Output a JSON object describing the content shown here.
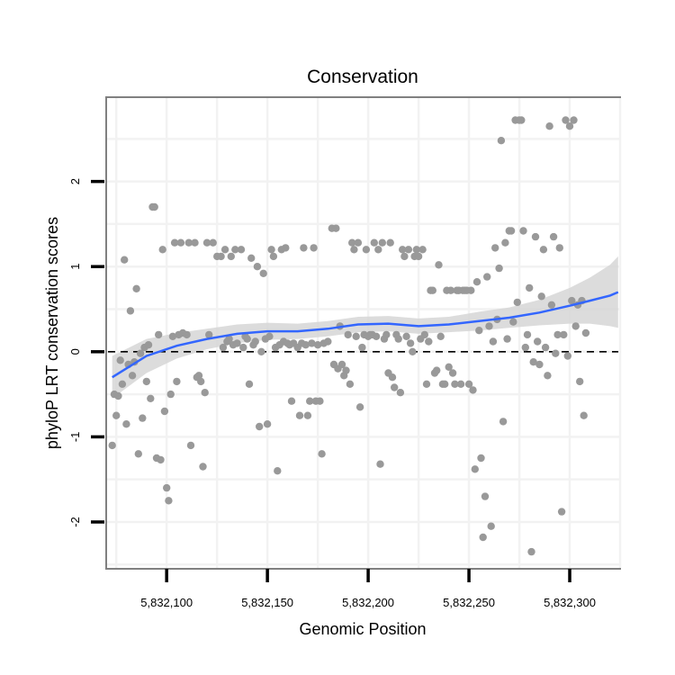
{
  "chart_data": {
    "type": "scatter",
    "title": "Conservation",
    "xlabel": "Genomic Position",
    "ylabel": "phyloP LRT conservation scores",
    "xlim": [
      5832070,
      5832325
    ],
    "ylim": [
      -2.55,
      2.99
    ],
    "x_ticks": [
      5832100,
      5832150,
      5832200,
      5832250,
      5832300
    ],
    "x_tick_labels": [
      "5,832,100",
      "5,832,150",
      "5,832,200",
      "5,832,250",
      "5,832,300"
    ],
    "y_ticks": [
      -2,
      -1,
      0,
      1,
      2
    ],
    "y_tick_labels": [
      "-2",
      "-1",
      "0",
      "1",
      "2"
    ],
    "reference_line": {
      "y": 0,
      "style": "dashed"
    },
    "grid": true,
    "colors": {
      "points": "#999999",
      "smooth": "#3366ff",
      "band": "#d3d3d3",
      "panel_border": "#808080"
    },
    "smooth": {
      "x": [
        5832073,
        5832090,
        5832105,
        5832120,
        5832135,
        5832150,
        5832165,
        5832180,
        5832195,
        5832210,
        5832225,
        5832240,
        5832255,
        5832270,
        5832285,
        5832300,
        5832310,
        5832320,
        5832324
      ],
      "y": [
        -0.3,
        -0.05,
        0.07,
        0.15,
        0.21,
        0.24,
        0.24,
        0.27,
        0.32,
        0.33,
        0.3,
        0.32,
        0.36,
        0.4,
        0.46,
        0.54,
        0.6,
        0.66,
        0.7
      ],
      "lower": [
        -0.55,
        -0.25,
        -0.08,
        0.03,
        0.1,
        0.14,
        0.15,
        0.18,
        0.23,
        0.24,
        0.21,
        0.23,
        0.25,
        0.28,
        0.31,
        0.33,
        0.33,
        0.3,
        0.28
      ],
      "upper": [
        -0.05,
        0.15,
        0.22,
        0.27,
        0.32,
        0.34,
        0.33,
        0.36,
        0.41,
        0.42,
        0.39,
        0.41,
        0.47,
        0.52,
        0.61,
        0.75,
        0.87,
        1.02,
        1.12
      ]
    },
    "points": [
      {
        "x": 5832073,
        "y": -1.1
      },
      {
        "x": 5832074,
        "y": -0.5
      },
      {
        "x": 5832075,
        "y": -0.75
      },
      {
        "x": 5832076,
        "y": -0.52
      },
      {
        "x": 5832077,
        "y": -0.1
      },
      {
        "x": 5832078,
        "y": -0.38
      },
      {
        "x": 5832079,
        "y": 1.08
      },
      {
        "x": 5832080,
        "y": -0.85
      },
      {
        "x": 5832081,
        "y": -0.15
      },
      {
        "x": 5832082,
        "y": 0.48
      },
      {
        "x": 5832083,
        "y": -0.28
      },
      {
        "x": 5832084,
        "y": -0.12
      },
      {
        "x": 5832085,
        "y": 0.74
      },
      {
        "x": 5832086,
        "y": -1.2
      },
      {
        "x": 5832087,
        "y": -0.02
      },
      {
        "x": 5832088,
        "y": -0.78
      },
      {
        "x": 5832089,
        "y": 0.05
      },
      {
        "x": 5832090,
        "y": -0.35
      },
      {
        "x": 5832091,
        "y": 0.08
      },
      {
        "x": 5832092,
        "y": -0.55
      },
      {
        "x": 5832093,
        "y": 1.7
      },
      {
        "x": 5832094,
        "y": 1.7
      },
      {
        "x": 5832095,
        "y": -1.25
      },
      {
        "x": 5832096,
        "y": 0.2
      },
      {
        "x": 5832097,
        "y": -1.27
      },
      {
        "x": 5832098,
        "y": 1.2
      },
      {
        "x": 5832099,
        "y": -0.7
      },
      {
        "x": 5832100,
        "y": -1.6
      },
      {
        "x": 5832101,
        "y": -1.75
      },
      {
        "x": 5832102,
        "y": -0.5
      },
      {
        "x": 5832103,
        "y": 0.18
      },
      {
        "x": 5832104,
        "y": 1.28
      },
      {
        "x": 5832105,
        "y": -0.35
      },
      {
        "x": 5832106,
        "y": 0.2
      },
      {
        "x": 5832107,
        "y": 1.28
      },
      {
        "x": 5832108,
        "y": 0.22
      },
      {
        "x": 5832110,
        "y": 0.2
      },
      {
        "x": 5832111,
        "y": 1.28
      },
      {
        "x": 5832112,
        "y": -1.1
      },
      {
        "x": 5832114,
        "y": 1.28
      },
      {
        "x": 5832115,
        "y": -0.3
      },
      {
        "x": 5832116,
        "y": -0.28
      },
      {
        "x": 5832117,
        "y": -0.35
      },
      {
        "x": 5832118,
        "y": -1.35
      },
      {
        "x": 5832119,
        "y": -0.48
      },
      {
        "x": 5832120,
        "y": 1.28
      },
      {
        "x": 5832121,
        "y": 0.2
      },
      {
        "x": 5832123,
        "y": 1.28
      },
      {
        "x": 5832125,
        "y": 1.12
      },
      {
        "x": 5832127,
        "y": 1.12
      },
      {
        "x": 5832128,
        "y": 0.05
      },
      {
        "x": 5832129,
        "y": 1.2
      },
      {
        "x": 5832130,
        "y": 0.12
      },
      {
        "x": 5832131,
        "y": 0.15
      },
      {
        "x": 5832132,
        "y": 1.12
      },
      {
        "x": 5832133,
        "y": 0.08
      },
      {
        "x": 5832134,
        "y": 1.2
      },
      {
        "x": 5832135,
        "y": 0.1
      },
      {
        "x": 5832137,
        "y": 1.2
      },
      {
        "x": 5832138,
        "y": 0.05
      },
      {
        "x": 5832139,
        "y": 0.18
      },
      {
        "x": 5832140,
        "y": 0.15
      },
      {
        "x": 5832141,
        "y": -0.38
      },
      {
        "x": 5832142,
        "y": 1.1
      },
      {
        "x": 5832143,
        "y": 0.08
      },
      {
        "x": 5832144,
        "y": 0.12
      },
      {
        "x": 5832145,
        "y": 1.0
      },
      {
        "x": 5832146,
        "y": -0.88
      },
      {
        "x": 5832147,
        "y": 0.0
      },
      {
        "x": 5832148,
        "y": 0.92
      },
      {
        "x": 5832149,
        "y": 0.15
      },
      {
        "x": 5832150,
        "y": -0.85
      },
      {
        "x": 5832151,
        "y": 0.18
      },
      {
        "x": 5832152,
        "y": 1.2
      },
      {
        "x": 5832153,
        "y": 1.12
      },
      {
        "x": 5832154,
        "y": 0.05
      },
      {
        "x": 5832155,
        "y": -1.4
      },
      {
        "x": 5832156,
        "y": 0.08
      },
      {
        "x": 5832157,
        "y": 1.2
      },
      {
        "x": 5832158,
        "y": 0.12
      },
      {
        "x": 5832159,
        "y": 1.22
      },
      {
        "x": 5832160,
        "y": 0.1
      },
      {
        "x": 5832161,
        "y": 0.08
      },
      {
        "x": 5832162,
        "y": -0.58
      },
      {
        "x": 5832163,
        "y": 0.1
      },
      {
        "x": 5832165,
        "y": 0.05
      },
      {
        "x": 5832166,
        "y": -0.75
      },
      {
        "x": 5832167,
        "y": 0.1
      },
      {
        "x": 5832168,
        "y": 1.22
      },
      {
        "x": 5832169,
        "y": 0.08
      },
      {
        "x": 5832170,
        "y": -0.75
      },
      {
        "x": 5832171,
        "y": -0.58
      },
      {
        "x": 5832172,
        "y": 0.1
      },
      {
        "x": 5832173,
        "y": 1.22
      },
      {
        "x": 5832174,
        "y": -0.58
      },
      {
        "x": 5832175,
        "y": 0.08
      },
      {
        "x": 5832176,
        "y": -0.58
      },
      {
        "x": 5832177,
        "y": -1.2
      },
      {
        "x": 5832178,
        "y": 0.1
      },
      {
        "x": 5832180,
        "y": 0.12
      },
      {
        "x": 5832182,
        "y": 1.45
      },
      {
        "x": 5832183,
        "y": -0.15
      },
      {
        "x": 5832184,
        "y": 1.45
      },
      {
        "x": 5832185,
        "y": -0.2
      },
      {
        "x": 5832186,
        "y": 0.3
      },
      {
        "x": 5832187,
        "y": -0.15
      },
      {
        "x": 5832188,
        "y": -0.28
      },
      {
        "x": 5832189,
        "y": -0.22
      },
      {
        "x": 5832190,
        "y": 0.2
      },
      {
        "x": 5832191,
        "y": -0.38
      },
      {
        "x": 5832192,
        "y": 1.28
      },
      {
        "x": 5832193,
        "y": 1.2
      },
      {
        "x": 5832194,
        "y": 0.18
      },
      {
        "x": 5832195,
        "y": 1.28
      },
      {
        "x": 5832196,
        "y": -0.65
      },
      {
        "x": 5832197,
        "y": 0.05
      },
      {
        "x": 5832198,
        "y": 0.2
      },
      {
        "x": 5832199,
        "y": 1.2
      },
      {
        "x": 5832200,
        "y": 0.18
      },
      {
        "x": 5832201,
        "y": 0.2
      },
      {
        "x": 5832202,
        "y": 0.2
      },
      {
        "x": 5832203,
        "y": 1.28
      },
      {
        "x": 5832204,
        "y": 0.18
      },
      {
        "x": 5832205,
        "y": 1.2
      },
      {
        "x": 5832206,
        "y": -1.32
      },
      {
        "x": 5832207,
        "y": 1.28
      },
      {
        "x": 5832208,
        "y": 0.15
      },
      {
        "x": 5832209,
        "y": 0.2
      },
      {
        "x": 5832210,
        "y": -0.25
      },
      {
        "x": 5832211,
        "y": 1.28
      },
      {
        "x": 5832212,
        "y": -0.3
      },
      {
        "x": 5832213,
        "y": -0.42
      },
      {
        "x": 5832214,
        "y": 0.2
      },
      {
        "x": 5832215,
        "y": 0.15
      },
      {
        "x": 5832216,
        "y": -0.48
      },
      {
        "x": 5832217,
        "y": 1.2
      },
      {
        "x": 5832218,
        "y": 1.12
      },
      {
        "x": 5832219,
        "y": 0.18
      },
      {
        "x": 5832220,
        "y": 1.2
      },
      {
        "x": 5832221,
        "y": 0.1
      },
      {
        "x": 5832222,
        "y": 0.0
      },
      {
        "x": 5832223,
        "y": 1.12
      },
      {
        "x": 5832224,
        "y": 1.2
      },
      {
        "x": 5832225,
        "y": 1.12
      },
      {
        "x": 5832226,
        "y": 0.15
      },
      {
        "x": 5832227,
        "y": 1.2
      },
      {
        "x": 5832228,
        "y": 0.2
      },
      {
        "x": 5832229,
        "y": -0.38
      },
      {
        "x": 5832230,
        "y": 0.12
      },
      {
        "x": 5832231,
        "y": 0.72
      },
      {
        "x": 5832232,
        "y": 0.72
      },
      {
        "x": 5832233,
        "y": -0.25
      },
      {
        "x": 5832234,
        "y": -0.22
      },
      {
        "x": 5832235,
        "y": 1.02
      },
      {
        "x": 5832236,
        "y": 0.18
      },
      {
        "x": 5832237,
        "y": -0.38
      },
      {
        "x": 5832238,
        "y": -0.38
      },
      {
        "x": 5832239,
        "y": 0.72
      },
      {
        "x": 5832240,
        "y": -0.18
      },
      {
        "x": 5832241,
        "y": 0.72
      },
      {
        "x": 5832242,
        "y": -0.25
      },
      {
        "x": 5832243,
        "y": -0.38
      },
      {
        "x": 5832244,
        "y": 0.72
      },
      {
        "x": 5832245,
        "y": 0.72
      },
      {
        "x": 5832246,
        "y": -0.38
      },
      {
        "x": 5832247,
        "y": 0.72
      },
      {
        "x": 5832248,
        "y": 0.72
      },
      {
        "x": 5832249,
        "y": 0.72
      },
      {
        "x": 5832250,
        "y": -0.38
      },
      {
        "x": 5832251,
        "y": 0.72
      },
      {
        "x": 5832252,
        "y": -0.45
      },
      {
        "x": 5832253,
        "y": -1.38
      },
      {
        "x": 5832254,
        "y": 0.82
      },
      {
        "x": 5832255,
        "y": 0.25
      },
      {
        "x": 5832256,
        "y": -1.25
      },
      {
        "x": 5832257,
        "y": -2.18
      },
      {
        "x": 5832258,
        "y": -1.7
      },
      {
        "x": 5832259,
        "y": 0.88
      },
      {
        "x": 5832260,
        "y": 0.3
      },
      {
        "x": 5832261,
        "y": -2.05
      },
      {
        "x": 5832262,
        "y": 0.12
      },
      {
        "x": 5832263,
        "y": 1.22
      },
      {
        "x": 5832264,
        "y": 0.38
      },
      {
        "x": 5832265,
        "y": 0.98
      },
      {
        "x": 5832266,
        "y": 2.48
      },
      {
        "x": 5832267,
        "y": -0.82
      },
      {
        "x": 5832268,
        "y": 1.28
      },
      {
        "x": 5832269,
        "y": 0.15
      },
      {
        "x": 5832270,
        "y": 1.42
      },
      {
        "x": 5832271,
        "y": 1.42
      },
      {
        "x": 5832272,
        "y": 0.35
      },
      {
        "x": 5832273,
        "y": 2.72
      },
      {
        "x": 5832274,
        "y": 0.58
      },
      {
        "x": 5832275,
        "y": 2.72
      },
      {
        "x": 5832276,
        "y": 2.72
      },
      {
        "x": 5832277,
        "y": 1.42
      },
      {
        "x": 5832278,
        "y": 0.05
      },
      {
        "x": 5832279,
        "y": 0.2
      },
      {
        "x": 5832280,
        "y": 0.75
      },
      {
        "x": 5832281,
        "y": -2.35
      },
      {
        "x": 5832282,
        "y": -0.12
      },
      {
        "x": 5832283,
        "y": 1.35
      },
      {
        "x": 5832284,
        "y": 0.12
      },
      {
        "x": 5832285,
        "y": -0.15
      },
      {
        "x": 5832286,
        "y": 0.65
      },
      {
        "x": 5832287,
        "y": 1.2
      },
      {
        "x": 5832288,
        "y": 0.05
      },
      {
        "x": 5832289,
        "y": -0.28
      },
      {
        "x": 5832290,
        "y": 2.65
      },
      {
        "x": 5832291,
        "y": 0.55
      },
      {
        "x": 5832292,
        "y": 1.35
      },
      {
        "x": 5832293,
        "y": -0.02
      },
      {
        "x": 5832294,
        "y": 0.2
      },
      {
        "x": 5832295,
        "y": 1.22
      },
      {
        "x": 5832296,
        "y": -1.88
      },
      {
        "x": 5832297,
        "y": 0.2
      },
      {
        "x": 5832298,
        "y": 2.72
      },
      {
        "x": 5832299,
        "y": -0.05
      },
      {
        "x": 5832300,
        "y": 2.65
      },
      {
        "x": 5832301,
        "y": 0.6
      },
      {
        "x": 5832302,
        "y": 2.72
      },
      {
        "x": 5832303,
        "y": 0.3
      },
      {
        "x": 5832304,
        "y": 0.55
      },
      {
        "x": 5832305,
        "y": -0.35
      },
      {
        "x": 5832306,
        "y": 0.6
      },
      {
        "x": 5832307,
        "y": -0.75
      },
      {
        "x": 5832308,
        "y": 0.22
      }
    ]
  }
}
